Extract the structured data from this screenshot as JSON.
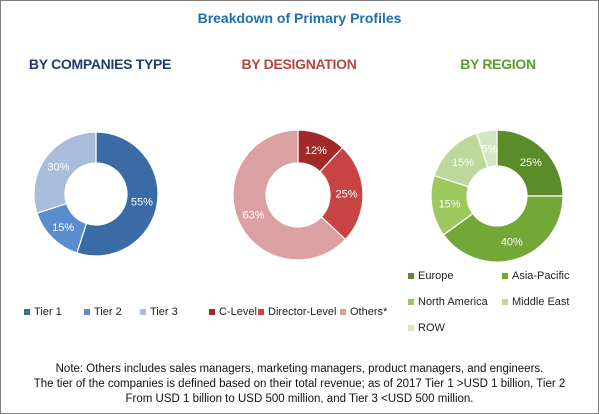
{
  "title": "Breakdown of Primary Profiles",
  "chart_data": [
    {
      "type": "pie",
      "variant": "donut",
      "title": "BY COMPANIES TYPE",
      "title_color": "#233b69",
      "slices": [
        {
          "label": "Tier 1",
          "value": 55,
          "display": "55%",
          "color": "#3a6ba5"
        },
        {
          "label": "Tier 2",
          "value": 15,
          "display": "15%",
          "color": "#5a8cd0"
        },
        {
          "label": "Tier 3",
          "value": 30,
          "display": "30%",
          "color": "#a9bcdc"
        }
      ]
    },
    {
      "type": "pie",
      "variant": "donut",
      "title": "BY DESIGNATION",
      "title_color": "#b8443f",
      "slices": [
        {
          "label": "C-Level",
          "value": 12,
          "display": "12%",
          "color": "#a02a2a"
        },
        {
          "label": "Director-Level",
          "value": 25,
          "display": "25%",
          "color": "#c84444"
        },
        {
          "label": "Others*",
          "value": 63,
          "display": "63%",
          "color": "#dba0a2"
        }
      ]
    },
    {
      "type": "pie",
      "variant": "donut",
      "title": "BY REGION",
      "title_color": "#5c9a2e",
      "slices": [
        {
          "label": "Europe",
          "value": 25,
          "display": "25%",
          "color": "#5b8c2a"
        },
        {
          "label": "Asia-Pacific",
          "value": 40,
          "display": "40%",
          "color": "#73a838"
        },
        {
          "label": "North America",
          "value": 15,
          "display": "15%",
          "color": "#9dc85e"
        },
        {
          "label": "Middle East",
          "value": 15,
          "display": "15%",
          "color": "#bcd89b"
        },
        {
          "label": "ROW",
          "value": 5,
          "display": "5%",
          "color": "#d5e6c2"
        }
      ]
    }
  ],
  "note": {
    "line1": "Note: Others includes sales managers, marketing managers, product managers, and engineers.",
    "line2": "The tier of the companies is defined based on their total revenue; as of 2017 Tier 1 >USD 1 billion, Tier 2",
    "line3": "From USD 1 billion to USD 500 million, and Tier 3 <USD 500 million."
  }
}
